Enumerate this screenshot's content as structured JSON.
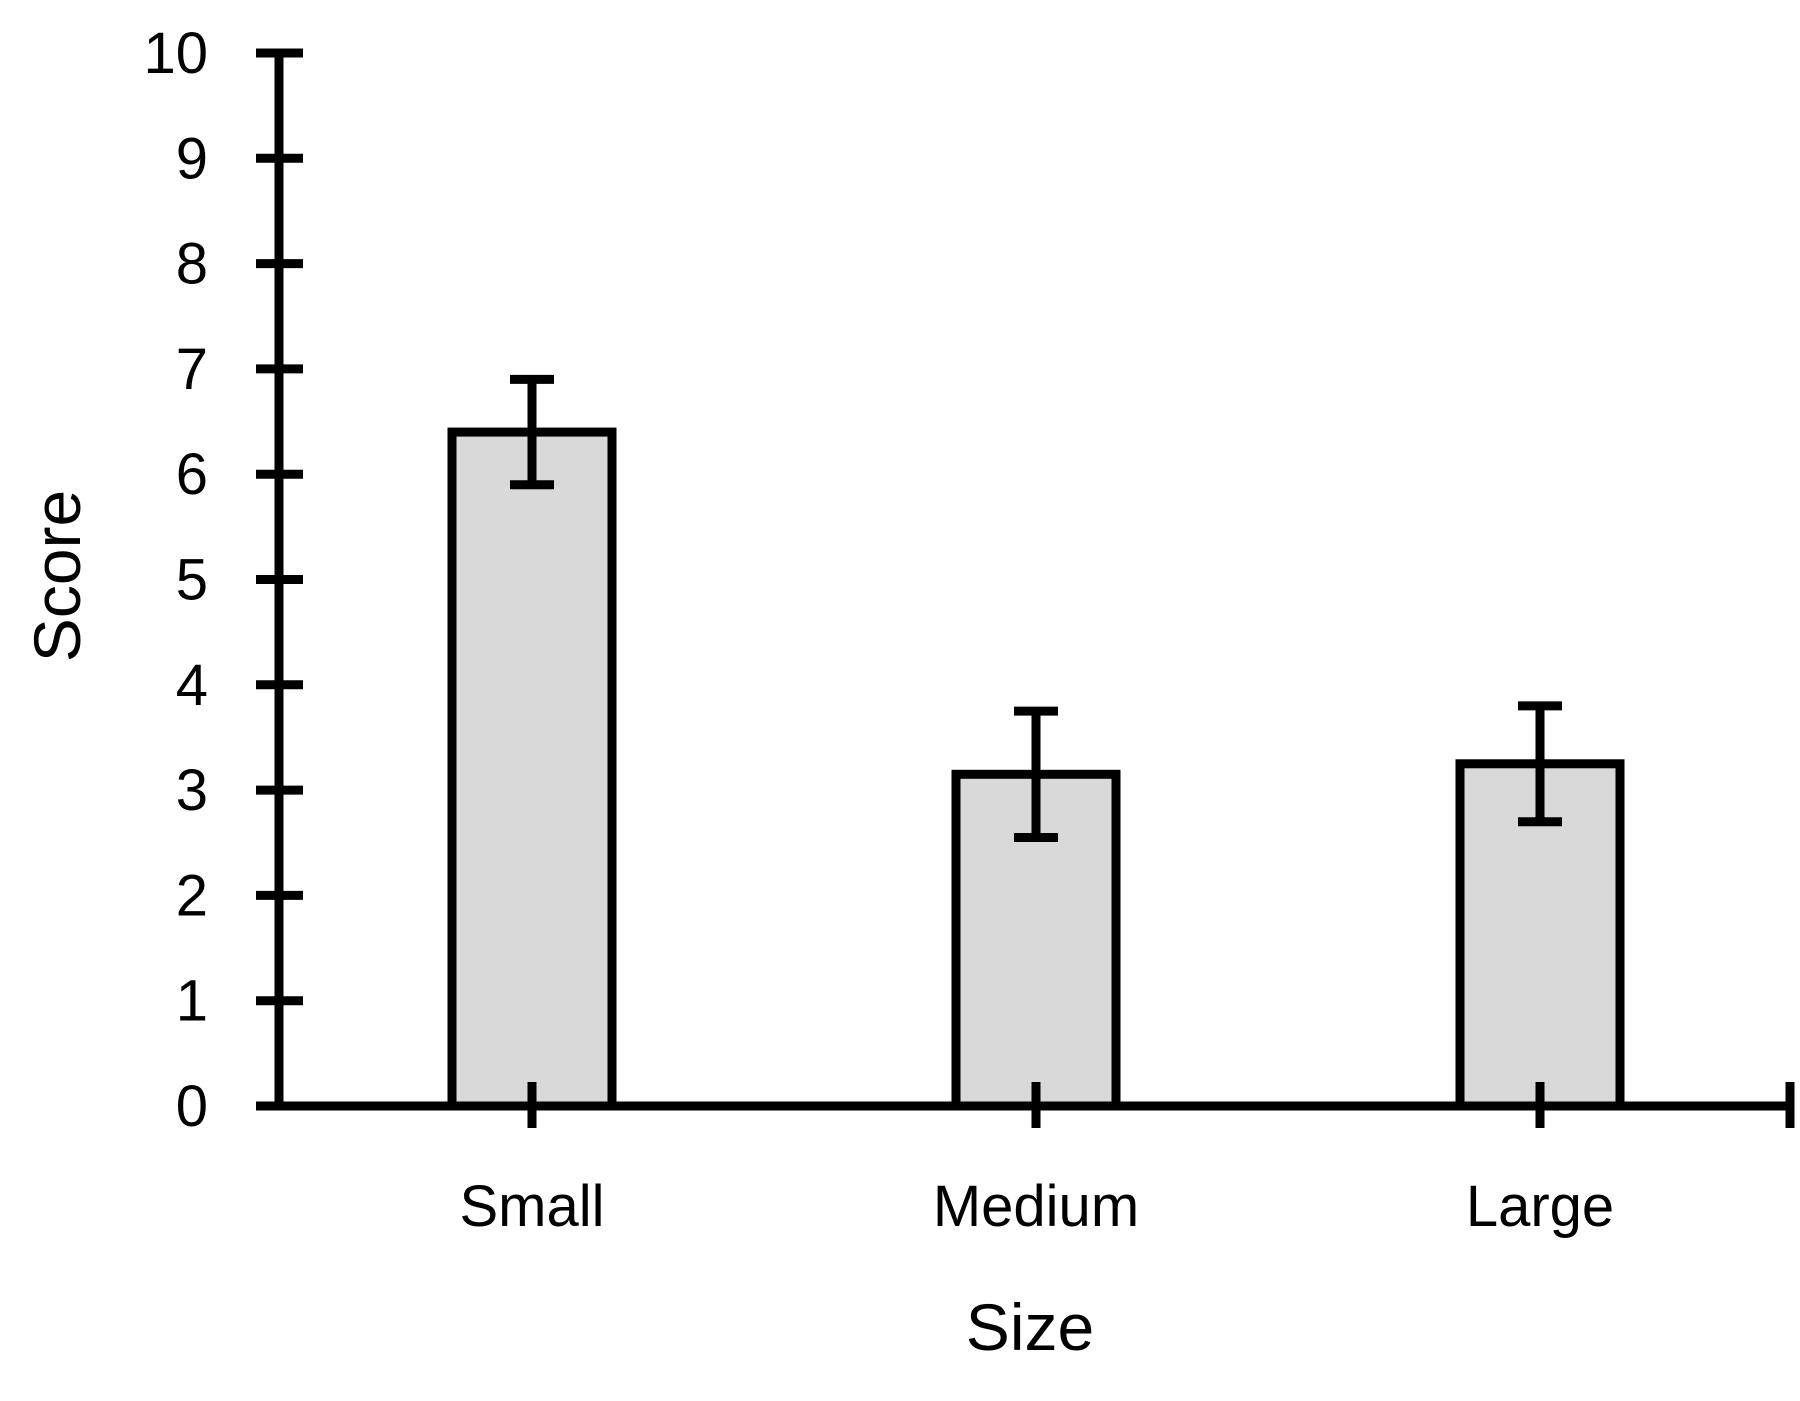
{
  "chart_data": {
    "type": "bar",
    "categories": [
      "Small",
      "Medium",
      "Large"
    ],
    "values": [
      6.4,
      3.15,
      3.25
    ],
    "error_bars": [
      0.5,
      0.6,
      0.55
    ],
    "title": "",
    "xlabel": "Size",
    "ylabel": "Score",
    "ylim": [
      0,
      10
    ],
    "yticks": [
      "0",
      "1",
      "2",
      "3",
      "4",
      "5",
      "6",
      "7",
      "8",
      "9",
      "10"
    ],
    "grid": false,
    "legend": "none",
    "colors": {
      "bar_fill": "#d9d9d9",
      "bar_stroke": "#000000",
      "axis": "#000000",
      "error_bar": "#000000"
    }
  }
}
